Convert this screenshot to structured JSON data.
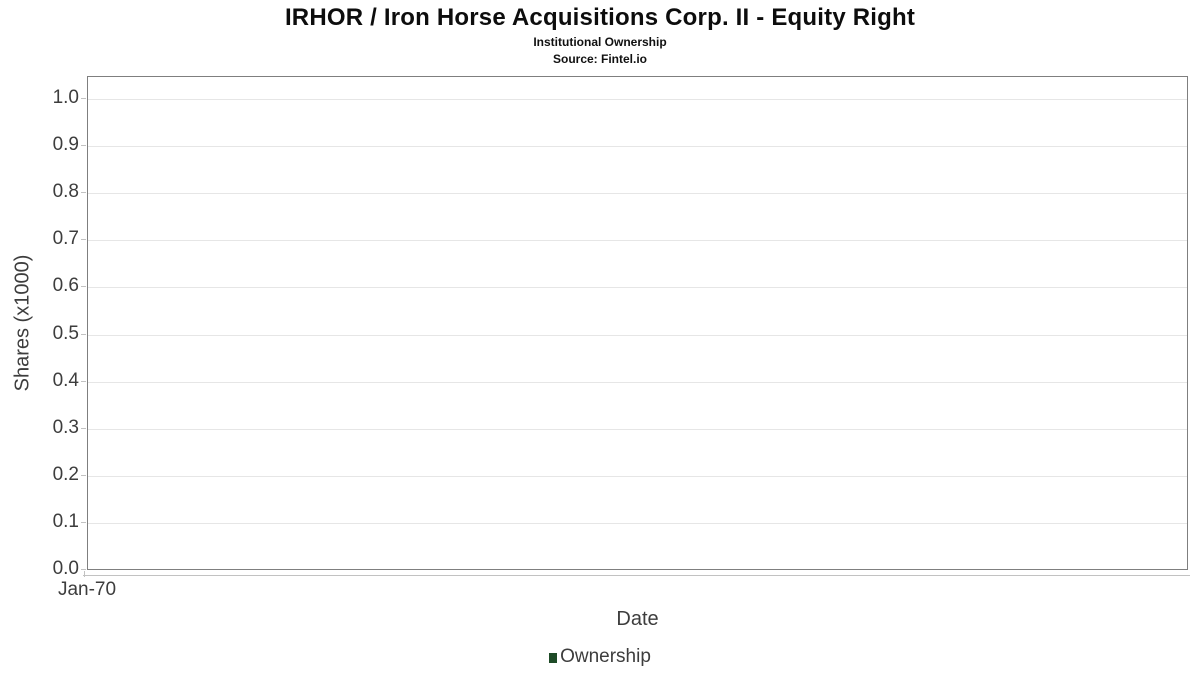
{
  "chart_data": {
    "type": "line",
    "title": "IRHOR / Iron Horse Acquisitions Corp. II - Equity Right",
    "subtitle": "Institutional Ownership",
    "source": "Source: Fintel.io",
    "xlabel": "Date",
    "ylabel": "Shares (x1000)",
    "xticks": [
      "Jan-70"
    ],
    "yticks": [
      "1.0",
      "0.9",
      "0.8",
      "0.7",
      "0.6",
      "0.5",
      "0.4",
      "0.3",
      "0.2",
      "0.1",
      "0.0"
    ],
    "ylim": [
      0.0,
      1.0
    ],
    "grid": true,
    "legend_position": "bottom",
    "series": [
      {
        "name": "Ownership",
        "color": "#1e4b27",
        "x": [],
        "values": []
      }
    ]
  },
  "colors": {
    "plot_border": "#7f7f7f",
    "gridline": "#e6e6e6",
    "axis_tick": "#c2c2c2",
    "axis_text": "#3d3d3d",
    "title_text": "#0d0d0d",
    "series_green": "#1e4b27"
  }
}
